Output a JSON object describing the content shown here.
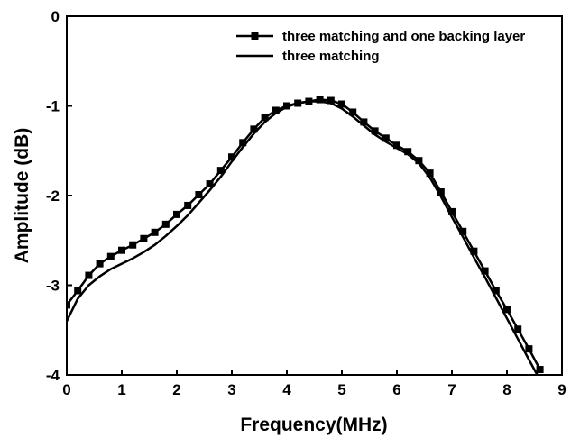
{
  "chart_data": {
    "type": "line",
    "xlabel": "Frequency(MHz)",
    "ylabel": "Amplitude (dB)",
    "xlim": [
      0,
      9
    ],
    "ylim": [
      -4,
      0
    ],
    "x_ticks": [
      0,
      1,
      2,
      3,
      4,
      5,
      6,
      7,
      8,
      9
    ],
    "y_ticks": [
      0,
      -1,
      -2,
      -3,
      -4
    ],
    "x_tick_labels": [
      "0",
      "1",
      "2",
      "3",
      "4",
      "5",
      "6",
      "7",
      "8",
      "9"
    ],
    "y_tick_labels": [
      "0",
      "-1",
      "-2",
      "-3",
      "-4"
    ],
    "grid": false,
    "legend_position": "top-right",
    "series": [
      {
        "name": "three matching and one backing layer",
        "marker": "square",
        "color": "#000000",
        "points": [
          [
            0.0,
            -3.22
          ],
          [
            0.2,
            -3.06
          ],
          [
            0.4,
            -2.89
          ],
          [
            0.6,
            -2.76
          ],
          [
            0.8,
            -2.68
          ],
          [
            1.0,
            -2.61
          ],
          [
            1.2,
            -2.55
          ],
          [
            1.4,
            -2.48
          ],
          [
            1.6,
            -2.41
          ],
          [
            1.8,
            -2.32
          ],
          [
            2.0,
            -2.21
          ],
          [
            2.2,
            -2.11
          ],
          [
            2.4,
            -1.99
          ],
          [
            2.6,
            -1.87
          ],
          [
            2.8,
            -1.72
          ],
          [
            3.0,
            -1.57
          ],
          [
            3.2,
            -1.41
          ],
          [
            3.4,
            -1.26
          ],
          [
            3.6,
            -1.13
          ],
          [
            3.8,
            -1.05
          ],
          [
            4.0,
            -1.0
          ],
          [
            4.2,
            -0.97
          ],
          [
            4.4,
            -0.95
          ],
          [
            4.6,
            -0.93
          ],
          [
            4.8,
            -0.94
          ],
          [
            5.0,
            -0.98
          ],
          [
            5.2,
            -1.07
          ],
          [
            5.4,
            -1.18
          ],
          [
            5.6,
            -1.28
          ],
          [
            5.8,
            -1.36
          ],
          [
            6.0,
            -1.44
          ],
          [
            6.2,
            -1.51
          ],
          [
            6.4,
            -1.61
          ],
          [
            6.6,
            -1.75
          ],
          [
            6.8,
            -1.96
          ],
          [
            7.0,
            -2.18
          ],
          [
            7.2,
            -2.4
          ],
          [
            7.4,
            -2.62
          ],
          [
            7.6,
            -2.84
          ],
          [
            7.8,
            -3.06
          ],
          [
            8.0,
            -3.27
          ],
          [
            8.2,
            -3.49
          ],
          [
            8.4,
            -3.71
          ],
          [
            8.6,
            -3.94
          ]
        ]
      },
      {
        "name": "three matching",
        "marker": "none",
        "color": "#000000",
        "points": [
          [
            0.0,
            -3.4
          ],
          [
            0.2,
            -3.15
          ],
          [
            0.4,
            -3.0
          ],
          [
            0.6,
            -2.9
          ],
          [
            0.8,
            -2.82
          ],
          [
            1.0,
            -2.76
          ],
          [
            1.2,
            -2.7
          ],
          [
            1.4,
            -2.63
          ],
          [
            1.6,
            -2.55
          ],
          [
            1.8,
            -2.45
          ],
          [
            2.0,
            -2.34
          ],
          [
            2.2,
            -2.22
          ],
          [
            2.4,
            -2.08
          ],
          [
            2.6,
            -1.94
          ],
          [
            2.8,
            -1.79
          ],
          [
            3.0,
            -1.62
          ],
          [
            3.2,
            -1.46
          ],
          [
            3.4,
            -1.31
          ],
          [
            3.6,
            -1.18
          ],
          [
            3.8,
            -1.08
          ],
          [
            4.0,
            -1.01
          ],
          [
            4.2,
            -0.97
          ],
          [
            4.4,
            -0.95
          ],
          [
            4.6,
            -0.95
          ],
          [
            4.8,
            -0.97
          ],
          [
            5.0,
            -1.03
          ],
          [
            5.2,
            -1.12
          ],
          [
            5.4,
            -1.22
          ],
          [
            5.6,
            -1.32
          ],
          [
            5.8,
            -1.4
          ],
          [
            6.0,
            -1.47
          ],
          [
            6.2,
            -1.54
          ],
          [
            6.4,
            -1.64
          ],
          [
            6.6,
            -1.8
          ],
          [
            6.8,
            -2.01
          ],
          [
            7.0,
            -2.24
          ],
          [
            7.2,
            -2.46
          ],
          [
            7.4,
            -2.69
          ],
          [
            7.6,
            -2.91
          ],
          [
            7.8,
            -3.14
          ],
          [
            8.0,
            -3.37
          ],
          [
            8.2,
            -3.6
          ],
          [
            8.4,
            -3.83
          ],
          [
            8.55,
            -4.0
          ]
        ]
      }
    ]
  }
}
